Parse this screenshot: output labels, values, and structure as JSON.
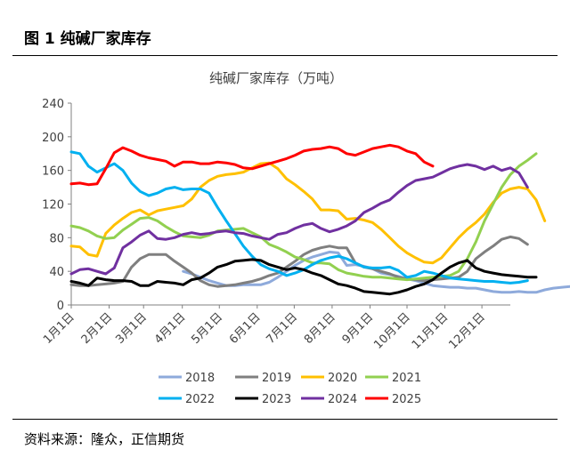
{
  "figure": {
    "title": "图 1  纯碱厂家库存",
    "source": "资料来源：隆众，正信期货"
  },
  "chart_data": {
    "type": "line",
    "title": "纯碱厂家库存（万吨）",
    "ylim": [
      0,
      240
    ],
    "yticks": [
      0,
      40,
      80,
      120,
      160,
      200,
      240
    ],
    "xlim": [
      1,
      52
    ],
    "xticks": [
      {
        "label": "1月1日",
        "week": 1
      },
      {
        "label": "2月1日",
        "week": 5.4
      },
      {
        "label": "3月1日",
        "week": 9.4
      },
      {
        "label": "4月1日",
        "week": 13.9
      },
      {
        "label": "5月1日",
        "week": 18.2
      },
      {
        "label": "6月1日",
        "week": 22.6
      },
      {
        "label": "7月1日",
        "week": 26.9
      },
      {
        "label": "8月1日",
        "week": 31.3
      },
      {
        "label": "9月1日",
        "week": 35.7
      },
      {
        "label": "10月1日",
        "week": 40
      },
      {
        "label": "11月1日",
        "week": 44.4
      },
      {
        "label": "12月1日",
        "week": 48.7
      }
    ],
    "legend_position": "bottom",
    "series": [
      {
        "name": "2018",
        "color": "#8eaadb",
        "start_week": 14,
        "values": [
          40,
          37,
          33,
          29,
          26,
          23,
          23,
          24,
          24,
          24,
          27,
          33,
          40,
          47,
          53,
          57,
          60,
          63,
          62,
          47,
          48,
          46,
          43,
          38,
          36,
          34,
          31,
          29,
          26,
          23,
          22,
          21,
          21,
          20,
          20,
          18,
          16,
          15,
          15,
          16,
          15,
          15,
          18,
          20,
          21,
          22,
          24
        ]
      },
      {
        "name": "2019",
        "color": "#7f7f7f",
        "start_week": 1,
        "values": [
          24,
          23,
          23,
          24,
          25,
          26,
          28,
          45,
          55,
          60,
          60,
          60,
          52,
          45,
          38,
          29,
          24,
          22,
          23,
          24,
          26,
          28,
          31,
          35,
          38,
          45,
          52,
          60,
          65,
          68,
          70,
          68,
          68,
          50,
          45,
          43,
          40,
          37,
          33,
          31,
          30,
          29,
          30,
          31,
          32,
          33,
          40,
          55,
          63,
          70,
          78,
          81,
          79,
          72
        ]
      },
      {
        "name": "2020",
        "color": "#ffc000",
        "start_week": 1,
        "values": [
          70,
          69,
          60,
          58,
          85,
          95,
          103,
          110,
          113,
          107,
          112,
          114,
          116,
          118,
          126,
          140,
          148,
          153,
          155,
          156,
          158,
          163,
          168,
          169,
          162,
          150,
          143,
          135,
          126,
          113,
          113,
          112,
          102,
          103,
          101,
          98,
          90,
          80,
          70,
          62,
          56,
          51,
          50,
          56,
          68,
          80,
          90,
          98,
          108,
          122,
          133,
          138,
          140,
          138,
          125,
          100
        ]
      },
      {
        "name": "2021",
        "color": "#92d050",
        "start_week": 1,
        "values": [
          94,
          92,
          88,
          82,
          79,
          80,
          89,
          96,
          103,
          104,
          100,
          93,
          87,
          82,
          81,
          80,
          83,
          88,
          89,
          90,
          91,
          86,
          81,
          72,
          68,
          63,
          57,
          54,
          50,
          50,
          49,
          42,
          38,
          36,
          34,
          33,
          33,
          32,
          31,
          30,
          31,
          32,
          33,
          34,
          35,
          40,
          55,
          75,
          100,
          120,
          140,
          155,
          165,
          172,
          180
        ]
      },
      {
        "name": "2022",
        "color": "#00b0f0",
        "start_week": 1,
        "values": [
          182,
          180,
          165,
          158,
          163,
          168,
          160,
          145,
          135,
          130,
          133,
          138,
          140,
          137,
          138,
          138,
          133,
          116,
          100,
          85,
          70,
          58,
          48,
          43,
          40,
          35,
          38,
          42,
          48,
          53,
          56,
          58,
          55,
          50,
          45,
          44,
          44,
          45,
          41,
          33,
          35,
          40,
          38,
          35,
          32,
          31,
          30,
          29,
          28,
          28,
          27,
          26,
          27,
          29
        ]
      },
      {
        "name": "2023",
        "color": "#000000",
        "start_week": 1,
        "values": [
          28,
          26,
          23,
          32,
          30,
          29,
          29,
          28,
          23,
          23,
          28,
          27,
          26,
          24,
          30,
          32,
          38,
          45,
          48,
          52,
          53,
          54,
          53,
          48,
          45,
          42,
          44,
          42,
          38,
          35,
          30,
          25,
          23,
          20,
          16,
          15,
          14,
          13,
          15,
          18,
          22,
          25,
          30,
          38,
          45,
          50,
          53,
          44,
          40,
          38,
          36,
          35,
          34,
          33,
          33
        ]
      },
      {
        "name": "2024",
        "color": "#7030a0",
        "start_week": 1,
        "values": [
          37,
          42,
          43,
          40,
          37,
          44,
          68,
          75,
          83,
          88,
          79,
          78,
          80,
          84,
          86,
          84,
          85,
          87,
          88,
          86,
          85,
          82,
          80,
          78,
          84,
          86,
          91,
          95,
          97,
          91,
          87,
          90,
          94,
          100,
          110,
          115,
          121,
          125,
          134,
          142,
          148,
          150,
          152,
          157,
          162,
          165,
          167,
          165,
          161,
          165,
          160,
          163,
          157,
          140
        ]
      },
      {
        "name": "2025",
        "color": "#ff0000",
        "start_week": 1,
        "values": [
          144,
          145,
          143,
          144,
          162,
          181,
          187,
          183,
          178,
          175,
          173,
          171,
          165,
          170,
          170,
          168,
          168,
          170,
          169,
          167,
          163,
          162,
          165,
          168,
          171,
          174,
          178,
          183,
          185,
          186,
          188,
          186,
          180,
          178,
          182,
          186,
          188,
          190,
          188,
          183,
          180,
          170,
          165
        ]
      }
    ]
  }
}
